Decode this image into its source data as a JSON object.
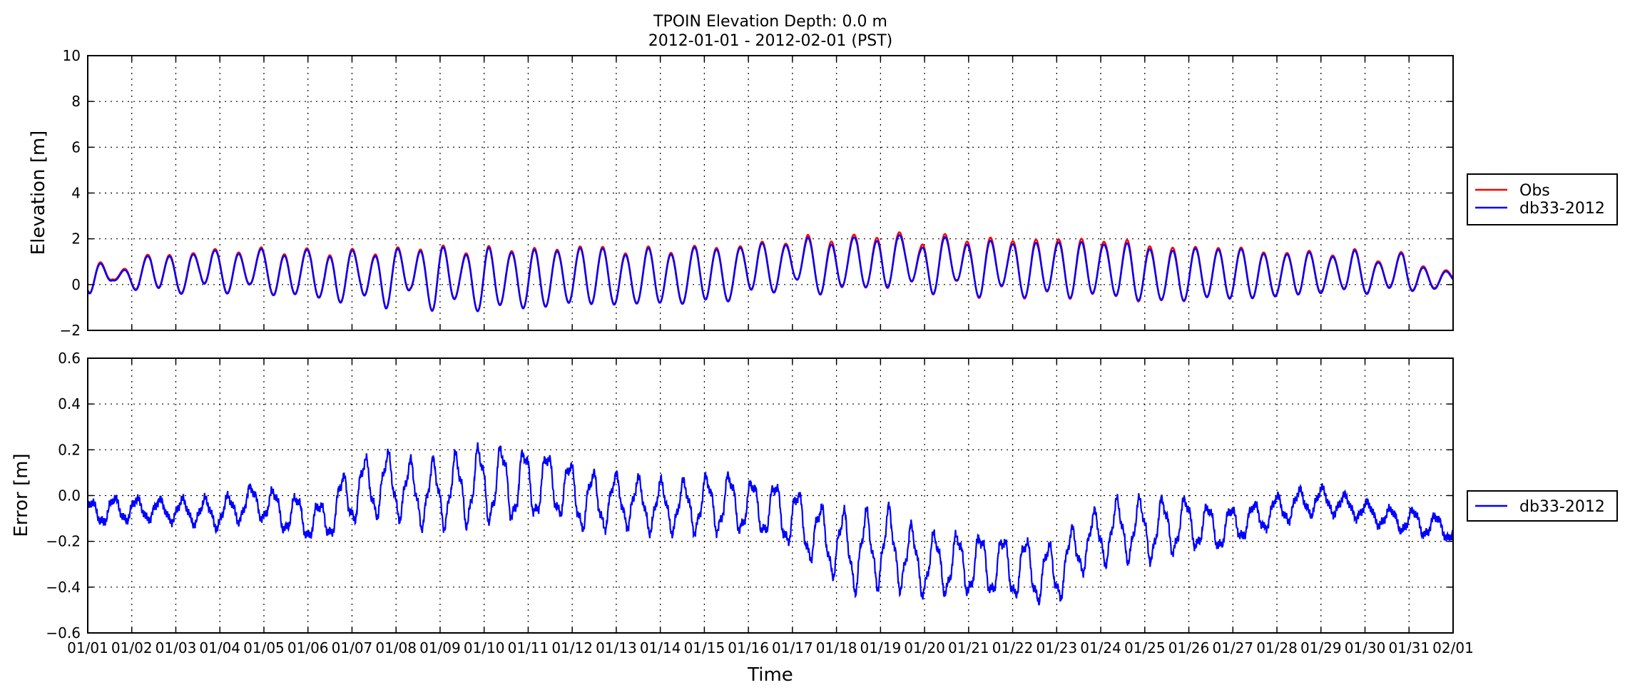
{
  "title": {
    "line1": "TPOIN Elevation Depth: 0.0 m",
    "line2": "2012-01-01 - 2012-02-01 (PST)"
  },
  "colors": {
    "obs": "#ff0000",
    "model": "#0000ff"
  },
  "chart_data": [
    {
      "type": "line",
      "ylabel": "Elevation [m]",
      "xlabel": "",
      "ylim": [
        -2,
        10
      ],
      "yticks": [
        "10",
        "8",
        "6",
        "4",
        "2",
        "0",
        "−2"
      ],
      "ytick_values": [
        10,
        8,
        6,
        4,
        2,
        0,
        -2
      ],
      "grid": true,
      "legend_position": "right",
      "series": [
        {
          "name": "Obs",
          "color": "#ff0000",
          "tidal_model": {
            "cycles_per_day": 1.9323,
            "x_unit": "days since 2012-01-01",
            "period_days": 31
          },
          "daily_max": [
            1.5,
            0.6,
            0.8,
            1.5,
            0.85,
            1.65,
            1.05,
            1.65,
            1.1,
            1.7,
            1.2,
            1.75,
            1.45,
            1.8,
            1.8,
            1.5,
            1.7,
            1.6,
            1.6,
            1.5,
            1.7,
            1.7,
            1.2,
            1.75,
            1.05,
            1.9,
            1.05,
            2.0,
            1.35,
            2.2,
            1.5,
            2.3,
            1.9,
            2.45,
            1.8,
            2.55,
            1.9,
            2.3,
            1.9,
            2.2,
            2.0,
            2.0,
            1.95,
            1.65,
            1.6,
            1.6,
            1.6,
            1.6,
            1.1,
            1.6,
            1.05,
            1.6,
            0.8,
            1.5,
            0.7,
            0.6
          ],
          "daily_min": [
            -0.4,
            0.3,
            -0.3,
            0.0,
            -0.5,
            0.2,
            -0.6,
            0.2,
            -0.9,
            -0.1,
            -1.2,
            -0.2,
            -1.3,
            -0.1,
            -1.3,
            -0.4,
            -1.4,
            -0.6,
            -1.2,
            -0.7,
            -0.9,
            -0.7,
            -0.9,
            -0.6,
            -0.9,
            -0.5,
            -0.8,
            -0.1,
            -0.4,
            0.3,
            -0.9,
            0.3,
            -0.7,
            0.5,
            -0.8,
            0.3,
            -0.8,
            0.1,
            -0.8,
            -0.1,
            -0.8,
            -0.1,
            -0.8,
            -0.6,
            -0.8,
            -0.5,
            -0.6,
            -0.5,
            -0.5,
            -0.4,
            -0.3,
            -0.2,
            -0.4,
            -0.1,
            -0.3,
            0.1
          ]
        },
        {
          "name": "db33-2012",
          "color": "#0000ff",
          "note_offset_from_obs": "model slightly lower peaks in days 17-25"
        }
      ],
      "x_ticks": [
        "01/01",
        "01/02",
        "01/03",
        "01/04",
        "01/05",
        "01/06",
        "01/07",
        "01/08",
        "01/09",
        "01/10",
        "01/11",
        "01/12",
        "01/13",
        "01/14",
        "01/15",
        "01/16",
        "01/17",
        "01/18",
        "01/19",
        "01/20",
        "01/21",
        "01/22",
        "01/23",
        "01/24",
        "01/25",
        "01/26",
        "01/27",
        "01/28",
        "01/29",
        "01/30",
        "01/31",
        "02/01"
      ]
    },
    {
      "type": "line",
      "ylabel": "Error [m]",
      "xlabel": "Time",
      "ylim": [
        -0.6,
        0.6
      ],
      "yticks": [
        "0.6",
        "0.4",
        "0.2",
        "0.0",
        "−0.2",
        "−0.4",
        "−0.6"
      ],
      "ytick_values": [
        0.6,
        0.4,
        0.2,
        0.0,
        -0.2,
        -0.4,
        -0.6
      ],
      "grid": true,
      "legend_position": "right",
      "series": [
        {
          "name": "db33-2012",
          "color": "#0000ff",
          "daily_center": [
            -0.08,
            -0.06,
            -0.06,
            -0.07,
            -0.08,
            -0.02,
            -0.08,
            -0.12,
            0.02,
            0.05,
            0.0,
            0.02,
            0.05,
            0.05,
            0.05,
            -0.03,
            -0.02,
            -0.05,
            -0.05,
            -0.03,
            -0.05,
            -0.08,
            -0.18,
            -0.25,
            -0.22,
            -0.3,
            -0.3,
            -0.3,
            -0.32,
            -0.35,
            -0.2,
            -0.15,
            -0.15,
            -0.12,
            -0.15,
            -0.1,
            -0.05,
            -0.02,
            -0.05,
            -0.1,
            -0.12,
            -0.15
          ],
          "daily_amplitude": [
            0.05,
            0.05,
            0.04,
            0.05,
            0.06,
            0.06,
            0.08,
            0.08,
            0.12,
            0.12,
            0.12,
            0.14,
            0.15,
            0.14,
            0.12,
            0.12,
            0.1,
            0.1,
            0.1,
            0.12,
            0.1,
            0.12,
            0.12,
            0.15,
            0.15,
            0.12,
            0.12,
            0.12,
            0.12,
            0.12,
            0.1,
            0.12,
            0.12,
            0.1,
            0.08,
            0.06,
            0.06,
            0.05,
            0.04,
            0.04,
            0.05,
            0.04
          ]
        }
      ],
      "x_ticks": [
        "01/01",
        "01/02",
        "01/03",
        "01/04",
        "01/05",
        "01/06",
        "01/07",
        "01/08",
        "01/09",
        "01/10",
        "01/11",
        "01/12",
        "01/13",
        "01/14",
        "01/15",
        "01/16",
        "01/17",
        "01/18",
        "01/19",
        "01/20",
        "01/21",
        "01/22",
        "01/23",
        "01/24",
        "01/25",
        "01/26",
        "01/27",
        "01/28",
        "01/29",
        "01/30",
        "01/31",
        "02/01"
      ]
    }
  ],
  "legends": {
    "top": [
      "Obs",
      "db33-2012"
    ],
    "bottom": [
      "db33-2012"
    ]
  }
}
